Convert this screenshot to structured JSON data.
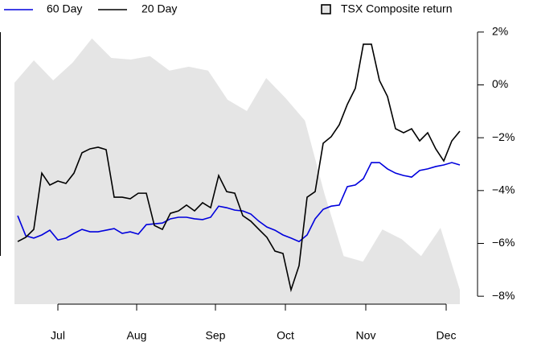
{
  "chart_data": {
    "type": "line",
    "legend_position": "top",
    "month_labels": [
      "Jul",
      "Aug",
      "Sep",
      "Oct",
      "Nov",
      "Dec"
    ],
    "ylim": [
      -8.3,
      2.3
    ],
    "yticks": [
      {
        "value": 2,
        "label": "2%"
      },
      {
        "value": 0,
        "label": "0%"
      },
      {
        "value": -2,
        "label": "−2%"
      },
      {
        "value": -4,
        "label": "−4%"
      },
      {
        "value": -6,
        "label": "−6%"
      },
      {
        "value": -8,
        "label": "−8%"
      }
    ],
    "area": {
      "name": "TSX Composite return",
      "color": "#e5e5e5",
      "values": [
        0.08,
        0.93,
        0.17,
        0.84,
        1.76,
        1.02,
        0.96,
        1.09,
        0.54,
        0.69,
        0.54,
        -0.56,
        -0.99,
        0.26,
        -0.5,
        -1.35,
        -4.1,
        -6.48,
        -6.69,
        -5.47,
        -5.84,
        -6.48,
        -5.41,
        -7.76
      ]
    },
    "series": [
      {
        "name": "60 Day",
        "color": "#0000dd",
        "values": [
          -4.95,
          -5.71,
          -5.8,
          -5.68,
          -5.5,
          -5.87,
          -5.8,
          -5.62,
          -5.47,
          -5.56,
          -5.56,
          -5.5,
          -5.44,
          -5.62,
          -5.56,
          -5.65,
          -5.29,
          -5.26,
          -5.23,
          -5.07,
          -5.01,
          -5.01,
          -5.07,
          -5.1,
          -5.01,
          -4.59,
          -4.65,
          -4.74,
          -4.77,
          -4.89,
          -5.16,
          -5.38,
          -5.5,
          -5.68,
          -5.8,
          -5.93,
          -5.68,
          -5.07,
          -4.71,
          -4.59,
          -4.55,
          -3.85,
          -3.79,
          -3.55,
          -2.94,
          -2.94,
          -3.18,
          -3.34,
          -3.43,
          -3.49,
          -3.24,
          -3.18,
          -3.09,
          -3.03,
          -2.94,
          -3.03
        ]
      },
      {
        "name": "20 Day",
        "color": "#000000",
        "values": [
          -5.93,
          -5.77,
          -5.47,
          -3.34,
          -3.79,
          -3.64,
          -3.73,
          -3.34,
          -2.57,
          -2.42,
          -2.36,
          -2.45,
          -4.25,
          -4.25,
          -4.31,
          -4.1,
          -4.1,
          -5.32,
          -5.47,
          -4.86,
          -4.77,
          -4.55,
          -4.77,
          -4.46,
          -4.65,
          -3.43,
          -4.04,
          -4.1,
          -4.95,
          -5.16,
          -5.47,
          -5.77,
          -6.29,
          -6.38,
          -7.76,
          -6.84,
          -4.25,
          -4.04,
          -2.21,
          -1.96,
          -1.51,
          -0.74,
          -0.13,
          1.54,
          1.54,
          0.17,
          -0.44,
          -1.66,
          -1.81,
          -1.66,
          -2.12,
          -1.81,
          -2.42,
          -2.88,
          -2.12,
          -1.75
        ]
      }
    ]
  }
}
